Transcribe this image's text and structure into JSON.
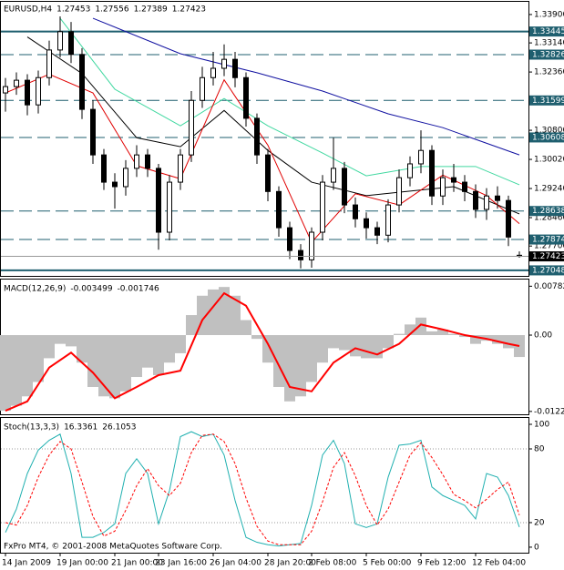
{
  "chart_data": [
    {
      "type": "candlestick",
      "title": "EURUSD,H4",
      "open": [
        1.318,
        1.3197,
        1.3214,
        1.3148,
        1.3221,
        1.3295,
        1.3344,
        1.3283,
        1.3136,
        1.3014,
        1.2941,
        1.2929,
        1.2978,
        1.3014,
        1.2978,
        1.2807,
        1.2941,
        1.3014,
        1.316,
        1.3221,
        1.3246,
        1.327,
        1.3221,
        1.3112,
        1.3014,
        1.2916,
        1.2819,
        1.2758,
        1.2733,
        1.2807,
        1.2941,
        1.2978,
        1.288,
        1.2843,
        1.2819,
        1.2799,
        1.288,
        1.2953,
        1.299,
        1.3026,
        1.2904,
        1.2953,
        1.2941,
        1.2916,
        1.2868,
        1.2904,
        1.2892,
        1.27453
      ],
      "high": [
        1.322,
        1.3235,
        1.323,
        1.324,
        1.332,
        1.3385,
        1.337,
        1.33,
        1.316,
        1.303,
        1.2965,
        1.3,
        1.304,
        1.303,
        1.299,
        1.296,
        1.303,
        1.3185,
        1.325,
        1.329,
        1.331,
        1.329,
        1.3235,
        1.3125,
        1.303,
        1.293,
        1.2835,
        1.2775,
        1.282,
        1.296,
        1.306,
        1.2995,
        1.29,
        1.286,
        1.2835,
        1.2895,
        1.2975,
        1.301,
        1.308,
        1.304,
        1.2975,
        1.299,
        1.296,
        1.2935,
        1.2925,
        1.293,
        1.2905,
        1.27556
      ],
      "low": [
        1.313,
        1.3175,
        1.312,
        1.3125,
        1.32,
        1.3275,
        1.326,
        1.311,
        1.299,
        1.292,
        1.287,
        1.2905,
        1.2955,
        1.2955,
        1.276,
        1.2785,
        1.292,
        1.2995,
        1.314,
        1.32,
        1.3225,
        1.3195,
        1.309,
        1.299,
        1.289,
        1.2795,
        1.2735,
        1.271,
        1.2712,
        1.2785,
        1.292,
        1.2858,
        1.282,
        1.279,
        1.2775,
        1.278,
        1.286,
        1.293,
        1.2965,
        1.288,
        1.288,
        1.2915,
        1.289,
        1.2845,
        1.284,
        1.287,
        1.277,
        1.27389
      ],
      "close": [
        1.3197,
        1.3214,
        1.3148,
        1.3221,
        1.3295,
        1.3344,
        1.3283,
        1.3136,
        1.3014,
        1.2941,
        1.2929,
        1.2978,
        1.3014,
        1.2978,
        1.2807,
        1.2941,
        1.3014,
        1.316,
        1.3221,
        1.3246,
        1.327,
        1.3221,
        1.3112,
        1.3014,
        1.2916,
        1.2819,
        1.2758,
        1.2733,
        1.2807,
        1.2941,
        1.2978,
        1.288,
        1.2843,
        1.2819,
        1.2799,
        1.288,
        1.2953,
        1.299,
        1.3026,
        1.2904,
        1.2953,
        1.2941,
        1.2916,
        1.2868,
        1.2904,
        1.2892,
        1.2794,
        1.27423
      ],
      "overlays": [
        {
          "color": "#1010a0",
          "x": [
            8,
            16,
            23,
            29,
            35,
            40,
            47
          ],
          "values": [
            1.338,
            1.3285,
            1.3234,
            1.3185,
            1.3124,
            1.3087,
            1.3014
          ]
        },
        {
          "color": "#40d8a0",
          "x": [
            5,
            10,
            16,
            20,
            24,
            29,
            33,
            38,
            43,
            47
          ],
          "values": [
            1.338,
            1.319,
            1.3092,
            1.3165,
            1.3092,
            1.3019,
            1.2958,
            1.2983,
            1.2983,
            1.2934
          ]
        },
        {
          "color": "#000000",
          "x": [
            2,
            7,
            12,
            16,
            20,
            24,
            28,
            33,
            37,
            41,
            47
          ],
          "values": [
            1.333,
            1.3232,
            1.306,
            1.3036,
            1.3133,
            1.3026,
            1.2941,
            1.2905,
            1.2917,
            1.2929,
            1.2856
          ]
        },
        {
          "color": "#e00000",
          "x": [
            0,
            4,
            8,
            12,
            16,
            20,
            24,
            28,
            32,
            36,
            40,
            44,
            47
          ],
          "values": [
            1.318,
            1.323,
            1.318,
            1.2985,
            1.295,
            1.3215,
            1.304,
            1.278,
            1.291,
            1.288,
            1.296,
            1.2905,
            1.283
          ]
        }
      ],
      "levels": [
        {
          "value": 1.33445,
          "dashed": false
        },
        {
          "value": 1.32826,
          "dashed": true
        },
        {
          "value": 1.31599,
          "dashed": true
        },
        {
          "value": 1.30608,
          "dashed": true
        },
        {
          "value": 1.28638,
          "dashed": true
        },
        {
          "value": 1.27874,
          "dashed": true
        },
        {
          "value": 1.27048,
          "dashed": false
        }
      ],
      "level_color": "#1f5f6f",
      "ylim": [
        1.269,
        1.3424
      ],
      "yticks": [
        {
          "value": 1.339,
          "label": "1.33900"
        },
        {
          "value": 1.3314,
          "label": "1.33140"
        },
        {
          "value": 1.3236,
          "label": "1.32360"
        },
        {
          "value": 1.308,
          "label": "1.30800"
        },
        {
          "value": 1.3002,
          "label": "1.30020"
        },
        {
          "value": 1.2924,
          "label": "1.29240"
        },
        {
          "value": 1.2846,
          "label": "1.28460"
        },
        {
          "value": 1.277,
          "label": "1.27700"
        }
      ],
      "xticks": [
        {
          "value": 0,
          "label": "14 Jan 2009"
        },
        {
          "value": 5,
          "label": "19 Jan 00:00"
        },
        {
          "value": 10,
          "label": "21 Jan 00:00"
        },
        {
          "value": 14,
          "label": "23 Jan 16:00"
        },
        {
          "value": 19,
          "label": "26 Jan 04:00"
        },
        {
          "value": 24,
          "label": "28 Jan 20:00"
        },
        {
          "value": 28,
          "label": "2 Feb 08:00"
        },
        {
          "value": 33,
          "label": "5 Feb 00:00"
        },
        {
          "value": 38,
          "label": "9 Feb 12:00"
        },
        {
          "value": 43,
          "label": "12 Feb 04:00"
        }
      ]
    },
    {
      "type": "indicator",
      "title": "MACD(12,26,9)",
      "series": [
        {
          "type": "bar",
          "color": "#c0c0c0",
          "values": [
            -0.0121,
            -0.0113,
            -0.0098,
            -0.0075,
            -0.0037,
            -0.0014,
            -0.0018,
            -0.0044,
            -0.0083,
            -0.0098,
            -0.0101,
            -0.009,
            -0.0067,
            -0.0052,
            -0.0064,
            -0.0044,
            -0.0029,
            0.0032,
            0.0063,
            0.0073,
            0.0077,
            0.0063,
            0.0024,
            -0.0006,
            -0.0044,
            -0.0083,
            -0.0106,
            -0.0098,
            -0.0075,
            -0.0044,
            -0.0021,
            -0.0024,
            -0.0034,
            -0.0037,
            -0.0037,
            -0.0021,
            0.0002,
            0.0017,
            0.0028,
            0.0006,
            0.0009,
            0.0002,
            -0.0003,
            -0.0014,
            -0.0009,
            -0.0014,
            -0.0021,
            -0.003499
          ]
        },
        {
          "type": "line",
          "color": "#ff0000",
          "width": 2,
          "x": [
            0,
            2,
            4,
            6,
            8,
            10,
            12,
            14,
            16,
            18,
            20,
            22,
            24,
            26,
            28,
            30,
            32,
            34,
            36,
            38,
            40,
            42,
            44,
            46,
            47
          ],
          "values": [
            -0.0121,
            -0.0106,
            -0.0052,
            -0.0028,
            -0.006,
            -0.0101,
            -0.0083,
            -0.0064,
            -0.0057,
            0.0024,
            0.0067,
            0.0047,
            -0.0014,
            -0.0083,
            -0.009,
            -0.0044,
            -0.0021,
            -0.0031,
            -0.0014,
            0.0017,
            0.0009,
            0.0,
            -0.0006,
            -0.0014,
            -0.001746
          ]
        }
      ],
      "ylim": [
        -0.01267,
        0.00889
      ],
      "yticks": [
        0.00782,
        {
          "value": 0,
          "label": "0.00"
        },
        -0.01221
      ]
    },
    {
      "type": "indicator",
      "title": "Stoch(13,3,3)",
      "series": [
        {
          "type": "line",
          "color": "#20b0b0",
          "width": 1,
          "values": [
            12,
            31,
            60,
            79,
            87,
            92,
            60,
            8,
            8,
            12,
            19,
            60,
            72,
            60,
            19,
            46,
            90,
            94,
            90,
            92,
            75,
            38,
            8,
            4,
            2,
            1,
            2,
            3,
            34,
            75,
            87,
            68,
            19,
            16,
            19,
            57,
            83,
            84,
            87,
            49,
            42,
            38,
            34,
            23,
            60,
            57,
            42,
            16.3361
          ]
        },
        {
          "type": "line",
          "color": "#ff0000",
          "width": 1,
          "dashed": true,
          "values": [
            20,
            18,
            34,
            57,
            75,
            86,
            80,
            53,
            25,
            9,
            13,
            30,
            50,
            64,
            50,
            42,
            52,
            77,
            91,
            92,
            86,
            68,
            40,
            17,
            5,
            2,
            2,
            2,
            13,
            37,
            65,
            77,
            58,
            34,
            18,
            31,
            53,
            75,
            85,
            73,
            59,
            43,
            38,
            32,
            39,
            47,
            53,
            26.1053
          ]
        }
      ],
      "levels": [
        80,
        20
      ],
      "ylim": [
        -4.5,
        105.2
      ],
      "yticks": [
        100,
        80,
        20,
        0
      ]
    }
  ],
  "copyright": "FxPro MT4, © 2001-2008 MetaQuotes Software Corp."
}
